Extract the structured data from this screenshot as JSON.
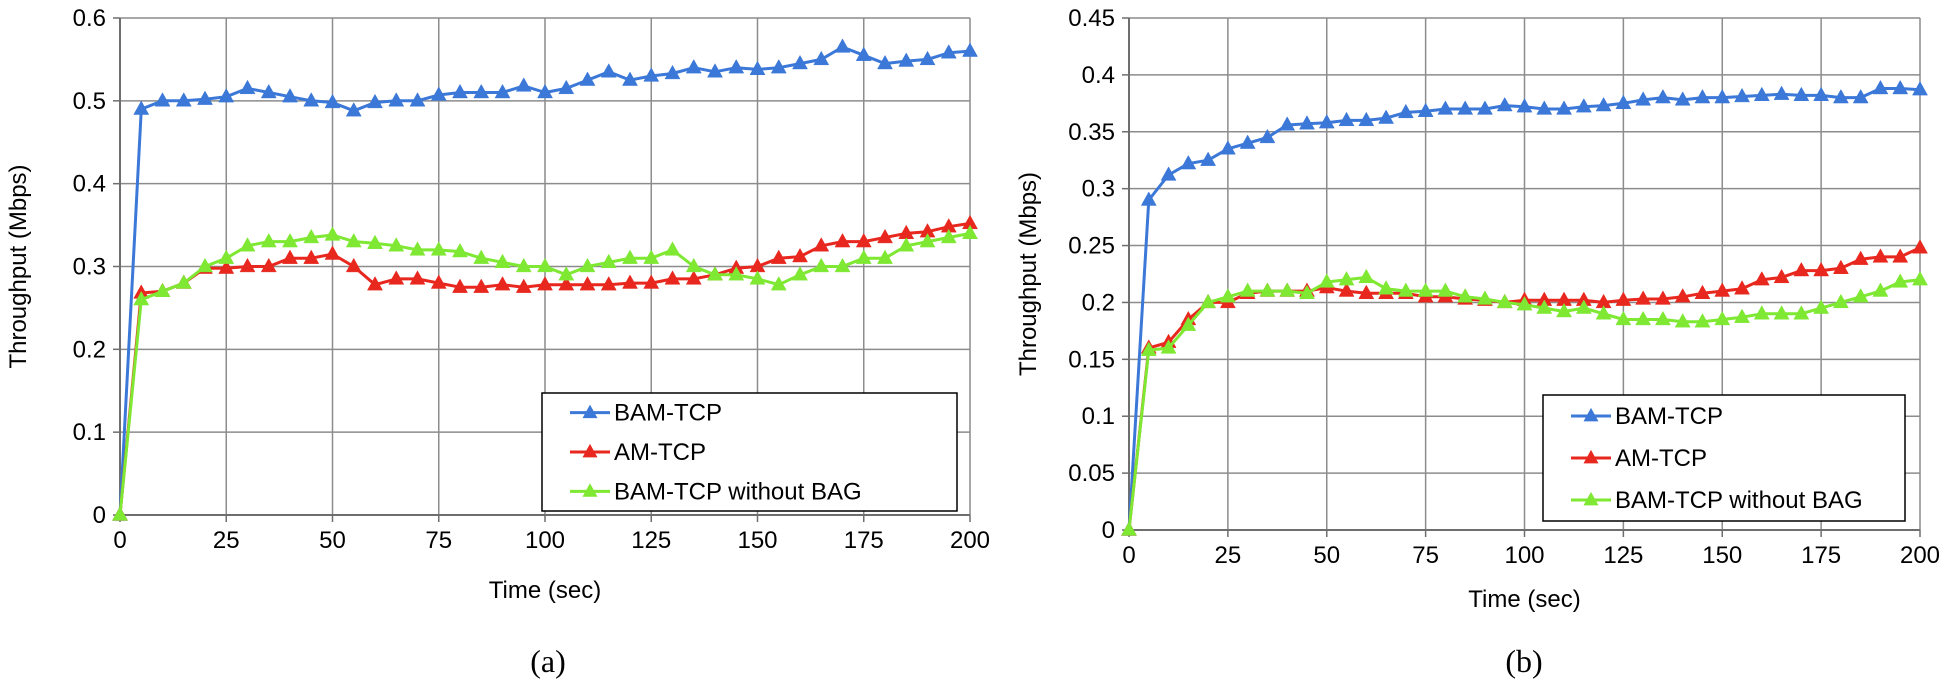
{
  "chart_data": [
    {
      "type": "line",
      "caption": "(a)",
      "xlabel": "Time (sec)",
      "ylabel": "Throughput (Mbps)",
      "xlim": [
        0,
        200
      ],
      "ylim": [
        0,
        0.6
      ],
      "xticks": [
        0,
        25,
        50,
        75,
        100,
        125,
        150,
        175,
        200
      ],
      "yticks": [
        0,
        0.1,
        0.2,
        0.3,
        0.4,
        0.5,
        0.6
      ],
      "ytick_labels": [
        "0",
        "0.1",
        "0.2",
        "0.3",
        "0.4",
        "0.5",
        "0.6"
      ],
      "grid": true,
      "legend_position": "bottom-right",
      "x": [
        0,
        5,
        10,
        15,
        20,
        25,
        30,
        35,
        40,
        45,
        50,
        55,
        60,
        65,
        70,
        75,
        80,
        85,
        90,
        95,
        100,
        105,
        110,
        115,
        120,
        125,
        130,
        135,
        140,
        145,
        150,
        155,
        160,
        165,
        170,
        175,
        180,
        185,
        190,
        195,
        200
      ],
      "series": [
        {
          "name": "BAM-TCP",
          "color": "#3b78d8",
          "values": [
            0,
            0.49,
            0.5,
            0.5,
            0.502,
            0.505,
            0.515,
            0.51,
            0.505,
            0.5,
            0.498,
            0.488,
            0.498,
            0.5,
            0.5,
            0.507,
            0.51,
            0.51,
            0.51,
            0.518,
            0.51,
            0.515,
            0.525,
            0.535,
            0.525,
            0.53,
            0.533,
            0.54,
            0.535,
            0.54,
            0.538,
            0.54,
            0.545,
            0.55,
            0.565,
            0.555,
            0.545,
            0.548,
            0.55,
            0.558,
            0.56
          ]
        },
        {
          "name": "AM-TCP",
          "color": "#e8281e",
          "values": [
            0,
            0.268,
            0.27,
            0.28,
            0.298,
            0.298,
            0.3,
            0.3,
            0.31,
            0.31,
            0.315,
            0.3,
            0.278,
            0.285,
            0.285,
            0.28,
            0.275,
            0.275,
            0.278,
            0.275,
            0.278,
            0.278,
            0.278,
            0.278,
            0.28,
            0.28,
            0.285,
            0.285,
            0.29,
            0.298,
            0.3,
            0.31,
            0.312,
            0.325,
            0.33,
            0.33,
            0.335,
            0.34,
            0.342,
            0.348,
            0.352
          ]
        },
        {
          "name": "BAM-TCP without BAG",
          "color": "#7ee832",
          "values": [
            0,
            0.26,
            0.27,
            0.28,
            0.3,
            0.31,
            0.325,
            0.33,
            0.33,
            0.335,
            0.338,
            0.33,
            0.328,
            0.325,
            0.32,
            0.32,
            0.318,
            0.31,
            0.305,
            0.3,
            0.3,
            0.29,
            0.3,
            0.305,
            0.31,
            0.31,
            0.32,
            0.3,
            0.29,
            0.29,
            0.285,
            0.278,
            0.29,
            0.3,
            0.3,
            0.31,
            0.31,
            0.325,
            0.33,
            0.335,
            0.34
          ]
        }
      ]
    },
    {
      "type": "line",
      "caption": "(b)",
      "xlabel": "Time (sec)",
      "ylabel": "Throughput (Mbps)",
      "xlim": [
        0,
        200
      ],
      "ylim": [
        0,
        0.45
      ],
      "xticks": [
        0,
        25,
        50,
        75,
        100,
        125,
        150,
        175,
        200
      ],
      "yticks": [
        0,
        0.05,
        0.1,
        0.15,
        0.2,
        0.25,
        0.3,
        0.35,
        0.4,
        0.45
      ],
      "ytick_labels": [
        "0",
        "0.05",
        "0.1",
        "0.15",
        "0.2",
        "0.25",
        "0.3",
        "0.35",
        "0.4",
        "0.45"
      ],
      "grid": true,
      "legend_position": "bottom-right",
      "x": [
        0,
        5,
        10,
        15,
        20,
        25,
        30,
        35,
        40,
        45,
        50,
        55,
        60,
        65,
        70,
        75,
        80,
        85,
        90,
        95,
        100,
        105,
        110,
        115,
        120,
        125,
        130,
        135,
        140,
        145,
        150,
        155,
        160,
        165,
        170,
        175,
        180,
        185,
        190,
        195,
        200
      ],
      "series": [
        {
          "name": "BAM-TCP",
          "color": "#3b78d8",
          "values": [
            0,
            0.29,
            0.312,
            0.322,
            0.325,
            0.335,
            0.34,
            0.345,
            0.356,
            0.357,
            0.358,
            0.36,
            0.36,
            0.362,
            0.367,
            0.368,
            0.37,
            0.37,
            0.37,
            0.373,
            0.372,
            0.37,
            0.37,
            0.372,
            0.373,
            0.375,
            0.378,
            0.38,
            0.378,
            0.38,
            0.38,
            0.381,
            0.382,
            0.383,
            0.382,
            0.382,
            0.38,
            0.38,
            0.388,
            0.388,
            0.387
          ]
        },
        {
          "name": "AM-TCP",
          "color": "#e8281e",
          "values": [
            0,
            0.16,
            0.165,
            0.185,
            0.2,
            0.2,
            0.208,
            0.21,
            0.21,
            0.21,
            0.213,
            0.21,
            0.208,
            0.208,
            0.208,
            0.205,
            0.205,
            0.203,
            0.202,
            0.2,
            0.202,
            0.202,
            0.202,
            0.202,
            0.2,
            0.202,
            0.203,
            0.203,
            0.205,
            0.208,
            0.21,
            0.212,
            0.22,
            0.222,
            0.228,
            0.228,
            0.23,
            0.238,
            0.24,
            0.24,
            0.248
          ]
        },
        {
          "name": "BAM-TCP without BAG",
          "color": "#7ee832",
          "values": [
            0,
            0.158,
            0.16,
            0.18,
            0.2,
            0.205,
            0.21,
            0.21,
            0.21,
            0.208,
            0.218,
            0.22,
            0.222,
            0.212,
            0.21,
            0.21,
            0.21,
            0.205,
            0.203,
            0.2,
            0.198,
            0.195,
            0.192,
            0.195,
            0.19,
            0.185,
            0.185,
            0.185,
            0.183,
            0.183,
            0.185,
            0.187,
            0.19,
            0.19,
            0.19,
            0.195,
            0.2,
            0.205,
            0.21,
            0.218,
            0.22
          ]
        }
      ]
    }
  ]
}
